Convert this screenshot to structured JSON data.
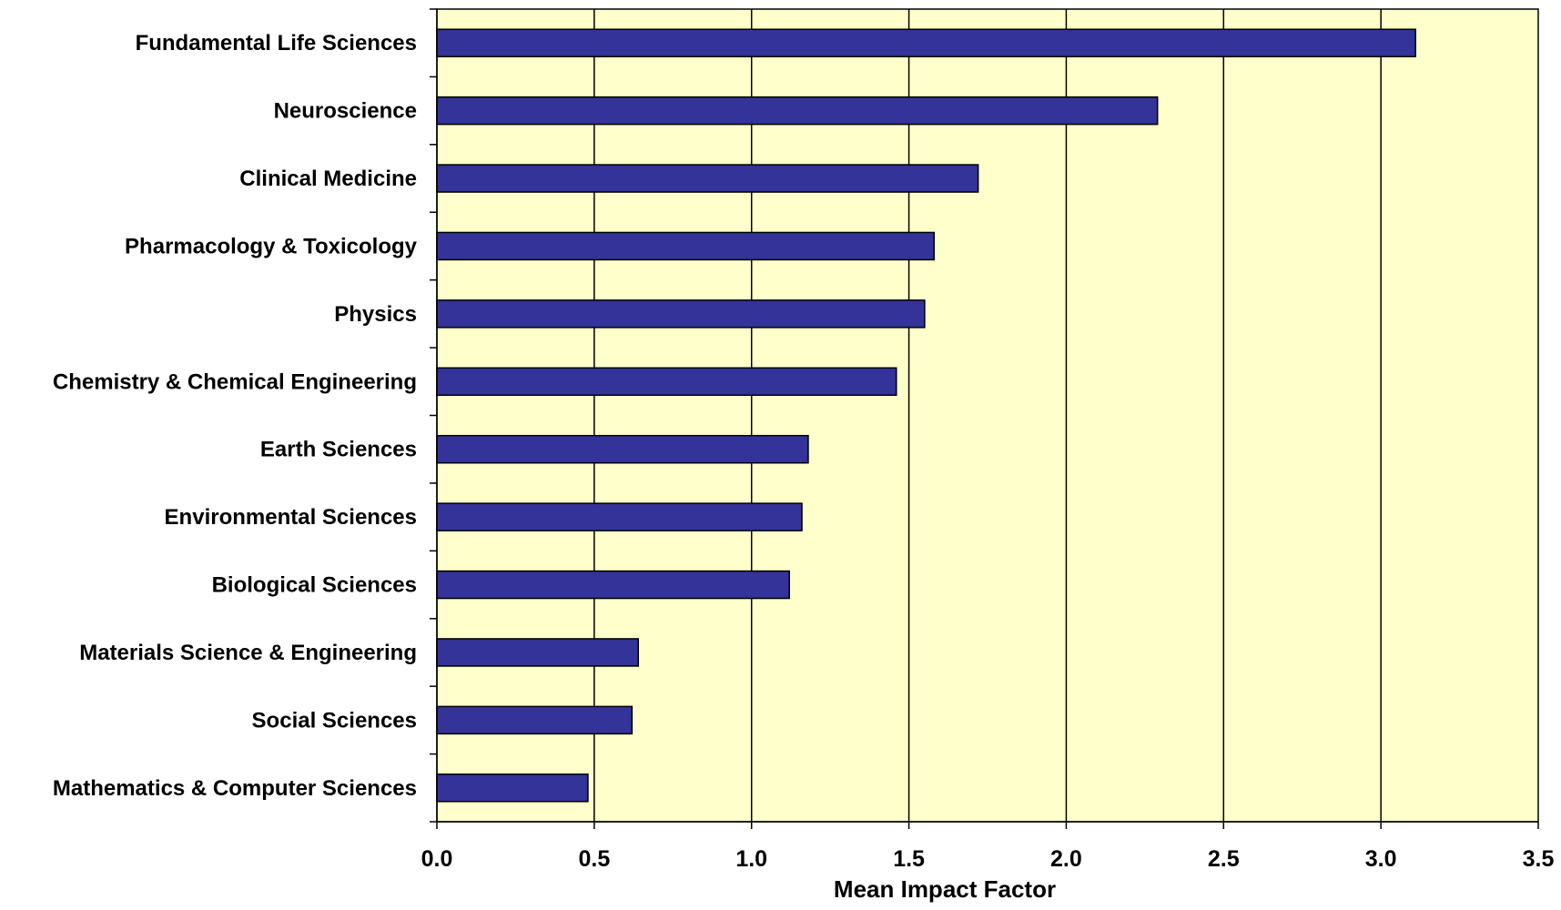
{
  "chart_data": {
    "type": "bar",
    "orientation": "horizontal",
    "categories": [
      "Fundamental Life Sciences",
      "Neuroscience",
      "Clinical Medicine",
      "Pharmacology & Toxicology",
      "Physics",
      "Chemistry & Chemical Engineering",
      "Earth Sciences",
      "Environmental Sciences",
      "Biological Sciences",
      "Materials Science & Engineering",
      "Social Sciences",
      "Mathematics & Computer Sciences"
    ],
    "values": [
      3.11,
      2.29,
      1.72,
      1.58,
      1.55,
      1.46,
      1.18,
      1.16,
      1.12,
      0.64,
      0.62,
      0.48
    ],
    "title": "",
    "xlabel": "Mean Impact Factor",
    "ylabel": "",
    "xlim": [
      0,
      3.5
    ],
    "xticks": [
      "0.0",
      "0.5",
      "1.0",
      "1.5",
      "2.0",
      "2.5",
      "3.0",
      "3.5"
    ],
    "grid": "vertical",
    "legend": "none",
    "colors": {
      "bar_fill": "#333399",
      "bar_stroke": "#000000",
      "plot_background": "#FFFFCC",
      "gridline": "#000000"
    }
  }
}
